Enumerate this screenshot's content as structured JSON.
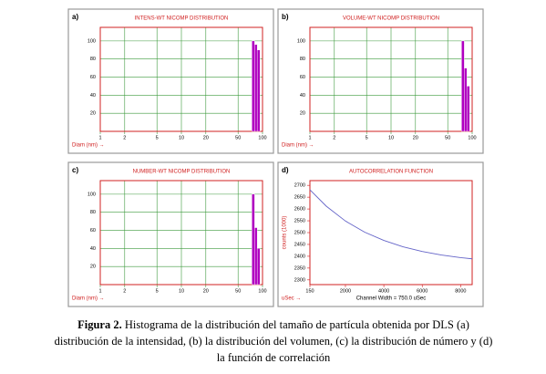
{
  "chart_data": [
    {
      "type": "histogram",
      "label": "a)",
      "title": "INTENS-WT NICOMP DISTRIBUTION",
      "xlabel": "Diam (nm) →",
      "bins": [
        74,
        80,
        86,
        93
      ],
      "values": [
        100,
        96,
        90
      ],
      "color": "#b000c0",
      "xscale": "log",
      "xlim": [
        1,
        100
      ],
      "xticks": [
        1,
        2,
        5,
        10,
        20,
        50,
        100
      ],
      "ylim": [
        0,
        115
      ],
      "yticks": [
        20,
        40,
        60,
        80,
        100
      ],
      "grid": true
    },
    {
      "type": "histogram",
      "label": "b)",
      "title": "VOLUME-WT NICOMP DISTRIBUTION",
      "xlabel": "Diam (nm) →",
      "bins": [
        74,
        80,
        86,
        93
      ],
      "values": [
        100,
        70,
        50
      ],
      "color": "#b000c0",
      "xscale": "log",
      "xlim": [
        1,
        100
      ],
      "xticks": [
        1,
        2,
        5,
        10,
        20,
        50,
        100
      ],
      "ylim": [
        0,
        115
      ],
      "yticks": [
        20,
        40,
        60,
        80,
        100
      ],
      "grid": true
    },
    {
      "type": "histogram",
      "label": "c)",
      "title": "NUMBER-WT NICOMP DISTRIBUTION",
      "xlabel": "Diam (nm) →",
      "bins": [
        74,
        80,
        86,
        93
      ],
      "values": [
        100,
        63,
        40
      ],
      "color": "#b000c0",
      "xscale": "log",
      "xlim": [
        1,
        100
      ],
      "xticks": [
        1,
        2,
        5,
        10,
        20,
        50,
        100
      ],
      "ylim": [
        0,
        115
      ],
      "yticks": [
        20,
        40,
        60,
        80,
        100
      ],
      "grid": true
    },
    {
      "type": "line",
      "label": "d)",
      "title": "AUTOCORRELATION FUNCTION",
      "xlabel": "uSec →",
      "note": "Channel Width = 750.0 uSec",
      "ylabel": "counts (1000)",
      "x": [
        150,
        1000,
        2000,
        3000,
        4000,
        5000,
        6000,
        7000,
        8000,
        8600
      ],
      "values": [
        2681,
        2612,
        2549,
        2502,
        2467,
        2440,
        2420,
        2405,
        2394,
        2389
      ],
      "color": "#6464c8",
      "xscale": "linear",
      "xlim": [
        150,
        8600
      ],
      "xticks": [
        150,
        2000,
        4000,
        6000,
        8000
      ],
      "ylim": [
        2280,
        2720
      ],
      "yticks": [
        2300,
        2350,
        2400,
        2450,
        2500,
        2550,
        2600,
        2650,
        2700
      ],
      "grid": false
    }
  ],
  "caption": {
    "label": "Figura 2.",
    "lines": [
      "Histograma de la distribución del tamaño de partícula obtenida por DLS (a)",
      "distribución de la intensidad, (b) la distribución del volumen, (c) la distribución de número y (d)",
      "la función de correlación"
    ]
  }
}
